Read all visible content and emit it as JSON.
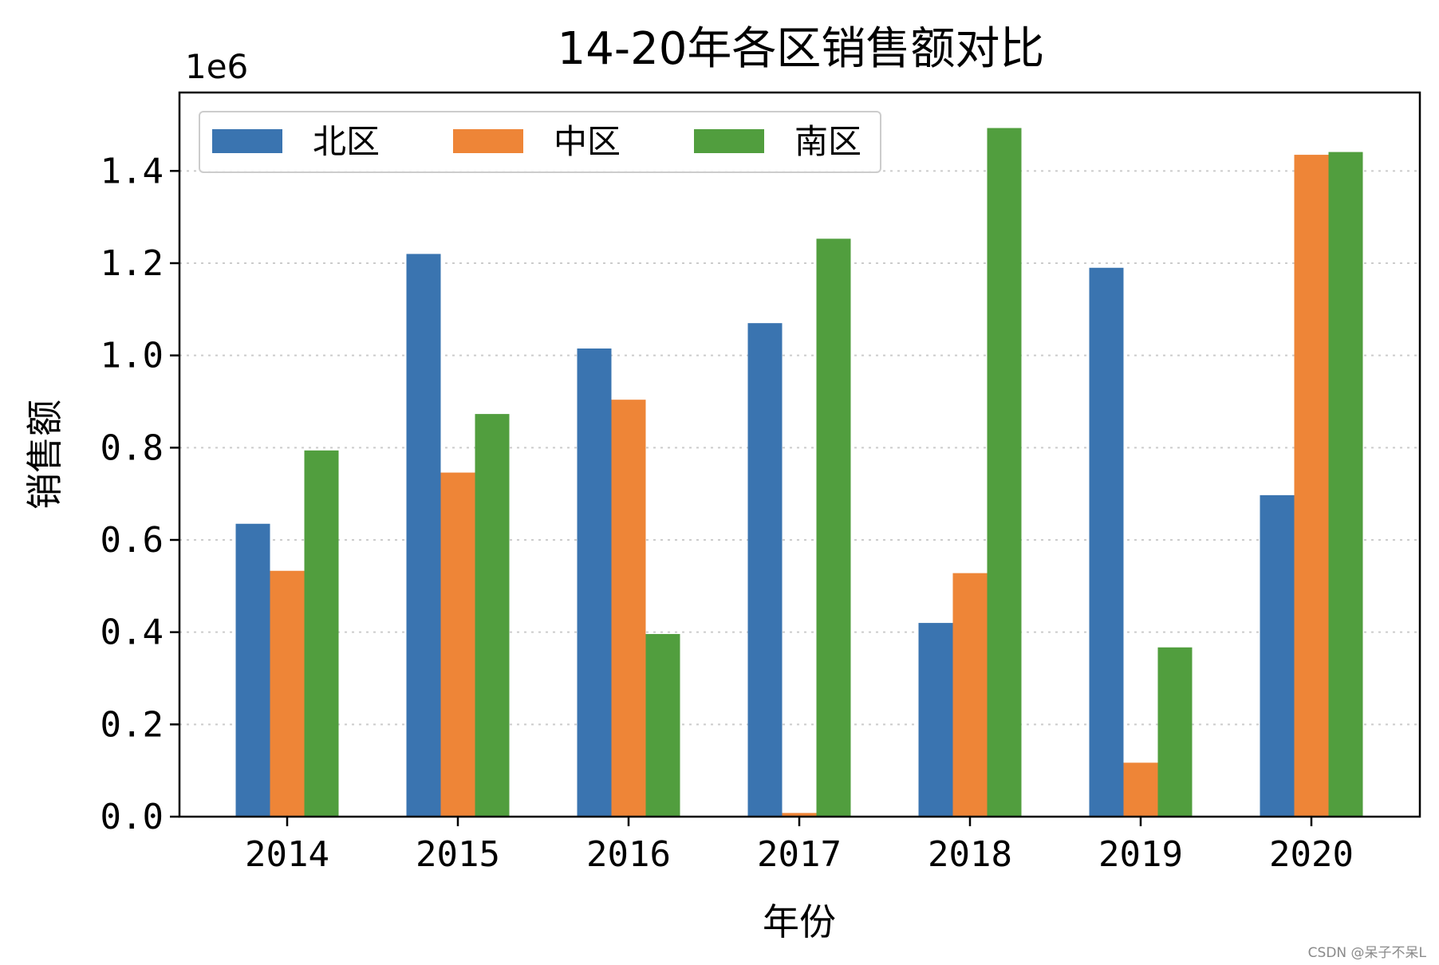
{
  "chart_data": {
    "type": "bar",
    "title": "14-20年各区销售额对比",
    "xlabel": "年份",
    "ylabel": "销售额",
    "y_offset_label": "1e6",
    "categories": [
      "2014",
      "2015",
      "2016",
      "2017",
      "2018",
      "2019",
      "2020"
    ],
    "series": [
      {
        "name": "北区",
        "color": "#3a74b0",
        "values": [
          635000,
          1220000,
          1015000,
          1070000,
          420000,
          1190000,
          697000
        ]
      },
      {
        "name": "中区",
        "color": "#ee8537",
        "values": [
          533000,
          746000,
          904000,
          8000,
          528000,
          117000,
          1435000
        ]
      },
      {
        "name": "南区",
        "color": "#519e3e",
        "values": [
          794000,
          873000,
          396000,
          1253000,
          1493000,
          367000,
          1441000
        ]
      }
    ],
    "y_ticks": [
      {
        "value": 0,
        "label": "0.0"
      },
      {
        "value": 200000,
        "label": "0.2"
      },
      {
        "value": 400000,
        "label": "0.4"
      },
      {
        "value": 600000,
        "label": "0.6"
      },
      {
        "value": 800000,
        "label": "0.8"
      },
      {
        "value": 1000000,
        "label": "1.0"
      },
      {
        "value": 1200000,
        "label": "1.2"
      },
      {
        "value": 1400000,
        "label": "1.4"
      }
    ],
    "ylim": [
      0,
      1570000
    ],
    "grid": "y-dotted",
    "legend_placement": "upper-left",
    "legend_columns": 3
  },
  "watermark": "CSDN @呆子不呆L"
}
